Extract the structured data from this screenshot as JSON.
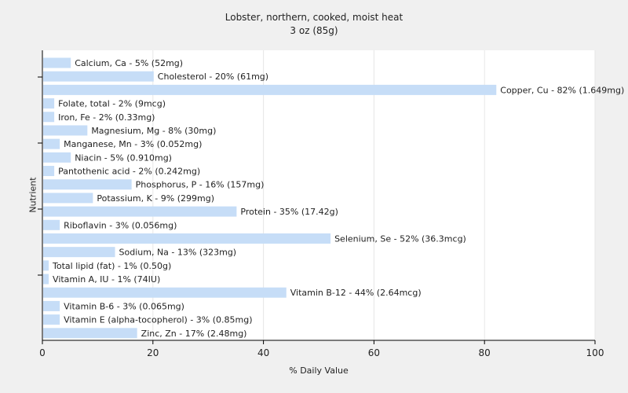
{
  "chart_data": {
    "type": "bar",
    "orientation": "horizontal",
    "title": "Lobster, northern, cooked, moist heat",
    "subtitle": "3 oz (85g)",
    "xlabel": "% Daily Value",
    "ylabel": "Nutrient",
    "xlim": [
      0,
      100
    ],
    "xticks": [
      0,
      20,
      40,
      60,
      80,
      100
    ],
    "grid": true,
    "bar_color": "#c6ddf7",
    "categories": [
      "Calcium, Ca",
      "Cholesterol",
      "Copper, Cu",
      "Folate, total",
      "Iron, Fe",
      "Magnesium, Mg",
      "Manganese, Mn",
      "Niacin",
      "Pantothenic acid",
      "Phosphorus, P",
      "Potassium, K",
      "Protein",
      "Riboflavin",
      "Selenium, Se",
      "Sodium, Na",
      "Total lipid (fat)",
      "Vitamin A, IU",
      "Vitamin B-12",
      "Vitamin B-6",
      "Vitamin E (alpha-tocopherol)",
      "Zinc, Zn"
    ],
    "values": [
      5,
      20,
      82,
      2,
      2,
      8,
      3,
      5,
      2,
      16,
      9,
      35,
      3,
      52,
      13,
      1,
      1,
      44,
      3,
      3,
      17
    ],
    "labels": [
      "Calcium, Ca - 5% (52mg)",
      "Cholesterol - 20% (61mg)",
      "Copper, Cu - 82% (1.649mg)",
      "Folate, total - 2% (9mcg)",
      "Iron, Fe - 2% (0.33mg)",
      "Magnesium, Mg - 8% (30mg)",
      "Manganese, Mn - 3% (0.052mg)",
      "Niacin - 5% (0.910mg)",
      "Pantothenic acid - 2% (0.242mg)",
      "Phosphorus, P - 16% (157mg)",
      "Potassium, K - 9% (299mg)",
      "Protein - 35% (17.42g)",
      "Riboflavin - 3% (0.056mg)",
      "Selenium, Se - 52% (36.3mcg)",
      "Sodium, Na - 13% (323mg)",
      "Total lipid (fat) - 1% (0.50g)",
      "Vitamin A, IU - 1% (74IU)",
      "Vitamin B-12 - 44% (2.64mcg)",
      "Vitamin B-6 - 3% (0.065mg)",
      "Vitamin E (alpha-tocopherol) - 3% (0.85mg)",
      "Zinc, Zn - 17% (2.48mg)"
    ]
  }
}
